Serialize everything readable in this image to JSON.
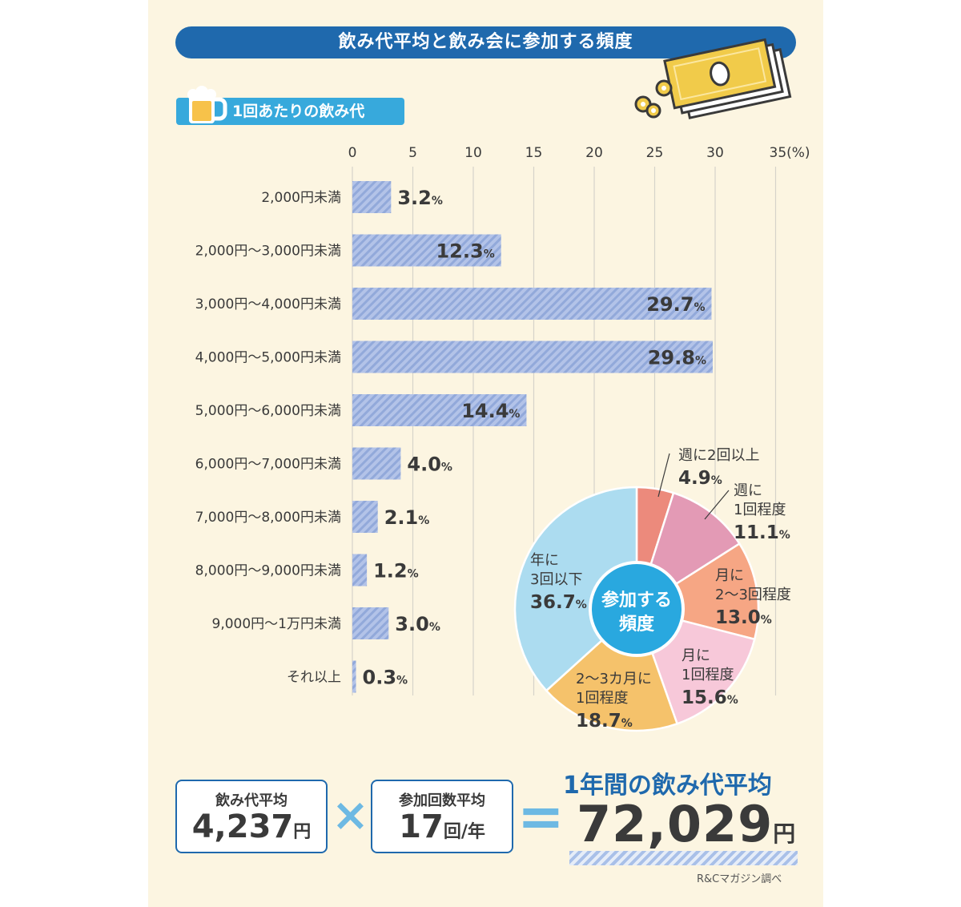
{
  "title": "飲み代平均と飲み会に参加する頻度",
  "section_label": "1回あたりの飲み代",
  "colors": {
    "navy": "#1f69ad",
    "cyan": "#37a9dc",
    "background": "#fcf5e1",
    "bar_fill": "#aebfe6",
    "bar_stripe": "#8ea6da",
    "donut_center": "#29a8df",
    "highlight_blue": "#1f69ad",
    "operator": "#6db9e3"
  },
  "icons": [
    "beer-mug-icon",
    "money-bills-icon",
    "coins-icon"
  ],
  "chart_data": [
    {
      "type": "bar",
      "orientation": "horizontal",
      "categories": [
        "2,000円未満",
        "2,000円〜3,000円未満",
        "3,000円〜4,000円未満",
        "4,000円〜5,000円未満",
        "5,000円〜6,000円未満",
        "6,000円〜7,000円未満",
        "7,000円〜8,000円未満",
        "8,000円〜9,000円未満",
        "9,000円〜1万円未満",
        "それ以上"
      ],
      "values": [
        3.2,
        12.3,
        29.7,
        29.8,
        14.4,
        4.0,
        2.1,
        1.2,
        3.0,
        0.3
      ],
      "value_labels": [
        "3.2",
        "12.3",
        "29.7",
        "29.8",
        "14.4",
        "4.0",
        "2.1",
        "1.2",
        "3.0",
        "0.3"
      ],
      "value_unit": "%",
      "xlim": [
        0,
        35
      ],
      "ticks": [
        0,
        5,
        10,
        15,
        20,
        25,
        30,
        35
      ],
      "tick_labels": [
        "0",
        "5",
        "10",
        "15",
        "20",
        "25",
        "30",
        "35(%)"
      ],
      "grid": true
    },
    {
      "type": "pie",
      "donut": true,
      "center_label": [
        "参加する",
        "頻度"
      ],
      "slices": [
        {
          "lines": [
            "週に2回以上"
          ],
          "value": 4.9,
          "value_label": "4.9",
          "color": "#ec8a7c"
        },
        {
          "lines": [
            "週に",
            "1回程度"
          ],
          "value": 11.1,
          "value_label": "11.1",
          "color": "#e39ab5"
        },
        {
          "lines": [
            "月に",
            "2〜3回程度"
          ],
          "value": 13.0,
          "value_label": "13.0",
          "color": "#f6a684"
        },
        {
          "lines": [
            "月に",
            "1回程度"
          ],
          "value": 15.6,
          "value_label": "15.6",
          "color": "#f7c8d9"
        },
        {
          "lines": [
            "2〜3カ月に",
            "1回程度"
          ],
          "value": 18.7,
          "value_label": "18.7",
          "color": "#f5c26b"
        },
        {
          "lines": [
            "年に",
            "3回以下"
          ],
          "value": 36.7,
          "value_label": "36.7",
          "color": "#acdcf0"
        }
      ],
      "value_unit": "%"
    }
  ],
  "summary": {
    "avg_cost_label": "飲み代平均",
    "avg_cost_value": "4,237",
    "avg_cost_unit": "円",
    "multiply": "×",
    "avg_count_label": "参加回数平均",
    "avg_count_value": "17",
    "avg_count_unit": "回/年",
    "equals": "=",
    "total_label": "1年間の飲み代平均",
    "total_value": "72,029",
    "total_unit": "円"
  },
  "source": "R&Cマガジン調べ"
}
